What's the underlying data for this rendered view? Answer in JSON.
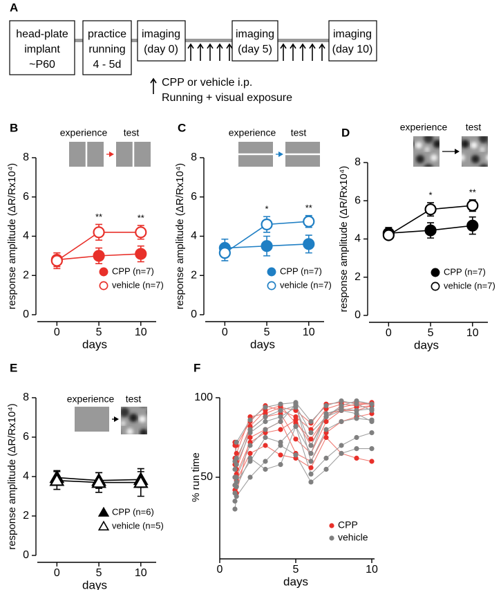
{
  "diagram": {
    "panel": "A",
    "boxes": [
      [
        "head-plate",
        "implant",
        "~P60"
      ],
      [
        "practice",
        "running",
        "4 - 5d"
      ],
      [
        "imaging",
        "(day 0)"
      ],
      [
        "imaging",
        "(day 5)"
      ],
      [
        "imaging",
        "(day 10)"
      ]
    ],
    "legend": [
      "CPP or vehicle i.p.",
      "Running + visual exposure"
    ]
  },
  "chart_data": [
    {
      "type": "line",
      "panel": "B",
      "inset": {
        "left": "experience",
        "right": "test",
        "stimulus": "vertical",
        "arrow_color": "#e8302a"
      },
      "ylabel": "response amplitude (ΔR/Rx10⁴)",
      "xlabel": "days",
      "marker": "circle",
      "x": [
        0,
        5,
        10
      ],
      "xlim": [
        -2.5,
        11.5
      ],
      "xticks": [
        0,
        5,
        10
      ],
      "ylim": [
        0,
        8
      ],
      "yticks": [
        0,
        2,
        4,
        6,
        8
      ],
      "series": [
        {
          "name": "CPP  (n=7)",
          "color": "#e8302a",
          "filled": true,
          "values": [
            2.8,
            3.0,
            3.1
          ],
          "errors": [
            0.35,
            0.4,
            0.4
          ]
        },
        {
          "name": "vehicle (n=7)",
          "color": "#e8302a",
          "filled": false,
          "values": [
            2.75,
            4.2,
            4.2
          ],
          "errors": [
            0.4,
            0.4,
            0.35
          ]
        }
      ],
      "annotations": [
        {
          "x": 5,
          "text": "**"
        },
        {
          "x": 10,
          "text": "**"
        }
      ]
    },
    {
      "type": "line",
      "panel": "C",
      "inset": {
        "left": "experience",
        "right": "test",
        "stimulus": "horizontal",
        "arrow_color": "#1f7fc4"
      },
      "ylabel": "response amplitude (ΔR/Rx10⁴)",
      "xlabel": "days",
      "marker": "circle",
      "x": [
        0,
        5,
        10
      ],
      "xlim": [
        -2.5,
        11.5
      ],
      "xticks": [
        0,
        5,
        10
      ],
      "ylim": [
        0,
        8
      ],
      "yticks": [
        0,
        2,
        4,
        6,
        8
      ],
      "series": [
        {
          "name": "CPP  (n=7)",
          "color": "#1f7fc4",
          "filled": true,
          "values": [
            3.4,
            3.5,
            3.6
          ],
          "errors": [
            0.45,
            0.5,
            0.45
          ]
        },
        {
          "name": "vehicle (n=7)",
          "color": "#1f7fc4",
          "filled": false,
          "values": [
            3.15,
            4.6,
            4.75
          ],
          "errors": [
            0.4,
            0.4,
            0.3
          ]
        }
      ],
      "annotations": [
        {
          "x": 5,
          "text": "*"
        },
        {
          "x": 10,
          "text": "**"
        }
      ]
    },
    {
      "type": "line",
      "panel": "D",
      "inset": {
        "left": "experience",
        "right": "test",
        "stimulus": "noise",
        "arrow_color": "#000000"
      },
      "ylabel": "response amplitude (ΔR/Rx10⁴)",
      "xlabel": "days",
      "marker": "circle",
      "x": [
        0,
        5,
        10
      ],
      "xlim": [
        -2.5,
        11.5
      ],
      "xticks": [
        0,
        5,
        10
      ],
      "ylim": [
        0,
        8
      ],
      "yticks": [
        0,
        2,
        4,
        6,
        8
      ],
      "series": [
        {
          "name": "CPP  (n=7)",
          "color": "#000000",
          "filled": true,
          "values": [
            4.3,
            4.45,
            4.7
          ],
          "errors": [
            0.3,
            0.4,
            0.45
          ]
        },
        {
          "name": "vehicle (n=7)",
          "color": "#000000",
          "filled": false,
          "values": [
            4.2,
            5.55,
            5.75
          ],
          "errors": [
            0.2,
            0.35,
            0.3
          ]
        }
      ],
      "annotations": [
        {
          "x": 5,
          "text": "*"
        },
        {
          "x": 10,
          "text": "**"
        }
      ]
    },
    {
      "type": "line",
      "panel": "E",
      "inset": {
        "left": "experience",
        "right": "test",
        "stimulus": "blank",
        "arrow_color": "#000000"
      },
      "ylabel": "response amplitude (ΔR/Rx10⁴)",
      "xlabel": "days",
      "marker": "triangle",
      "x": [
        0,
        5,
        10
      ],
      "xlim": [
        -2.5,
        11.5
      ],
      "xticks": [
        0,
        5,
        10
      ],
      "ylim": [
        0,
        8
      ],
      "yticks": [
        0,
        2,
        4,
        6,
        8
      ],
      "series": [
        {
          "name": "CPP  (n=6)",
          "color": "#000000",
          "filled": true,
          "values": [
            3.95,
            3.8,
            3.85
          ],
          "errors": [
            0.35,
            0.4,
            0.4
          ]
        },
        {
          "name": "vehicle (n=5)",
          "color": "#000000",
          "filled": false,
          "values": [
            3.8,
            3.7,
            3.7
          ],
          "errors": [
            0.45,
            0.5,
            0.7
          ]
        }
      ],
      "annotations": []
    },
    {
      "type": "runs",
      "panel": "F",
      "ylabel": "% run time",
      "xlabel": "days",
      "x": [
        1,
        1.1,
        2,
        3,
        4,
        5,
        6,
        7,
        8,
        9,
        10
      ],
      "xlim": [
        0,
        10
      ],
      "xticks": [
        0,
        5,
        10
      ],
      "ylim": [
        0,
        100
      ],
      "yticks": [
        50,
        100
      ],
      "series": [
        {
          "name": "CPP",
          "color": "#e8302a",
          "line_color": "#ef7a72",
          "values": [
            [
              72,
              60,
              82,
              92,
              95,
              84,
              74,
              88,
              94,
              96,
              96
            ],
            [
              58,
              55,
              80,
              88,
              90,
              74,
              65,
              85,
              92,
              92,
              95
            ],
            [
              45,
              40,
              75,
              80,
              85,
              65,
              60,
              78,
              85,
              88,
              90
            ],
            [
              62,
              70,
              85,
              95,
              92,
              88,
              80,
              93,
              96,
              95,
              97
            ],
            [
              50,
              52,
              72,
              78,
              80,
              86,
              70,
              90,
              92,
              94,
              95
            ],
            [
              42,
              48,
              65,
              70,
              64,
              62,
              56,
              75,
              65,
              62,
              60
            ],
            [
              70,
              65,
              88,
              90,
              94,
              92,
              84,
              96,
              97,
              97,
              96
            ]
          ]
        },
        {
          "name": "vehicle",
          "color": "#808080",
          "line_color": "#a0a0a0",
          "values": [
            [
              30,
              38,
              50,
              60,
              70,
              64,
              47,
              55,
              65,
              68,
              68
            ],
            [
              40,
              50,
              70,
              80,
              85,
              96,
              60,
              80,
              85,
              87,
              86
            ],
            [
              55,
              62,
              80,
              88,
              92,
              95,
              78,
              88,
              95,
              98,
              96
            ],
            [
              45,
              47,
              60,
              75,
              72,
              82,
              65,
              90,
              93,
              92,
              93
            ],
            [
              60,
              72,
              86,
              94,
              96,
              97,
              85,
              95,
              98,
              96,
              92
            ],
            [
              35,
              44,
              62,
              55,
              58,
              82,
              52,
              62,
              70,
              75,
              78
            ],
            [
              50,
              58,
              78,
              85,
              88,
              94,
              70,
              88,
              92,
              90,
              85
            ]
          ]
        }
      ]
    }
  ]
}
